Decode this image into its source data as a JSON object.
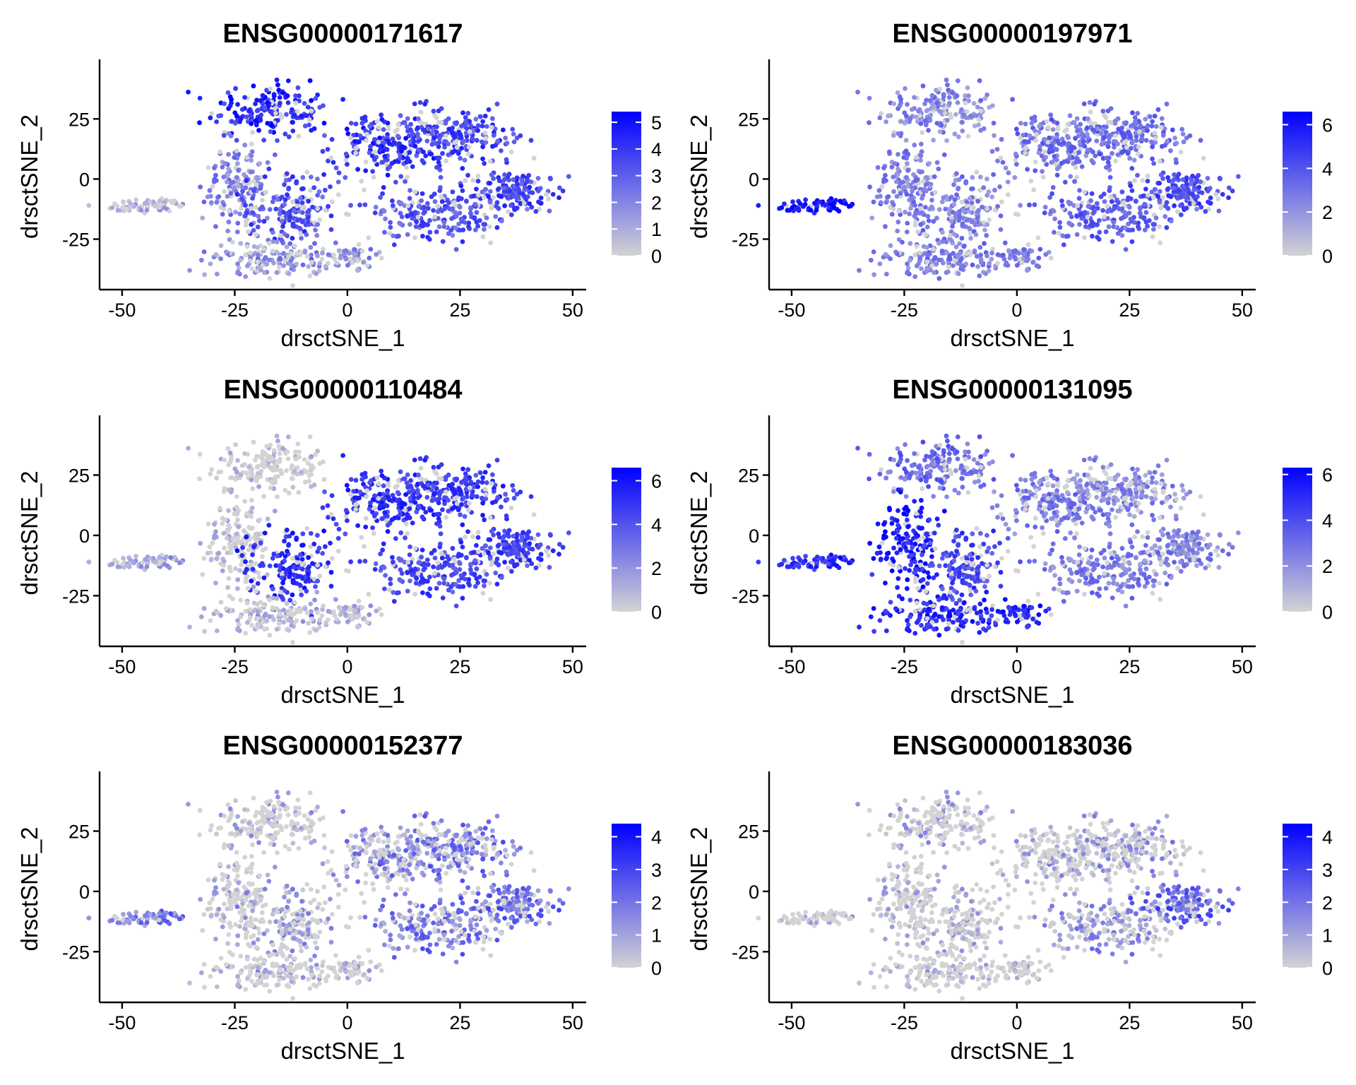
{
  "figure": {
    "low_color": "#D3D3D3",
    "high_color": "#0000FF"
  },
  "chart_data": [
    {
      "type": "scatter",
      "title": "ENSG00000171617",
      "xlabel": "drsctSNE_1",
      "ylabel": "drsctSNE_2",
      "xlim": [
        -55,
        53
      ],
      "ylim": [
        -46,
        48
      ],
      "x_ticks": [
        -50,
        -25,
        0,
        25,
        50
      ],
      "x_tick_labels": [
        "-50",
        "-25",
        "0",
        "25",
        "50"
      ],
      "y_ticks": [
        -25,
        0,
        25
      ],
      "y_tick_labels": [
        "-25",
        "0",
        "25"
      ],
      "color_scale": {
        "min": 0,
        "max": 5.4,
        "ticks": [
          0,
          1,
          2,
          3,
          4,
          5
        ],
        "tick_labels": [
          "0",
          "1",
          "2",
          "3",
          "4",
          "5"
        ]
      },
      "cluster_levels": [
        1.0,
        4.3,
        4.0,
        3.6,
        2.0,
        3.4,
        1.8,
        3.2,
        3.6
      ]
    },
    {
      "type": "scatter",
      "title": "ENSG00000197971",
      "xlabel": "drsctSNE_1",
      "ylabel": "drsctSNE_2",
      "xlim": [
        -55,
        53
      ],
      "ylim": [
        -46,
        48
      ],
      "x_ticks": [
        -50,
        -25,
        0,
        25,
        50
      ],
      "x_tick_labels": [
        "-50",
        "-25",
        "0",
        "25",
        "50"
      ],
      "y_ticks": [
        -25,
        0,
        25
      ],
      "y_tick_labels": [
        "-25",
        "0",
        "25"
      ],
      "color_scale": {
        "min": 0,
        "max": 6.6,
        "ticks": [
          0,
          2,
          4,
          6
        ],
        "tick_labels": [
          "0",
          "2",
          "4",
          "6"
        ]
      },
      "cluster_levels": [
        6.2,
        2.4,
        3.0,
        3.2,
        2.6,
        2.6,
        2.8,
        3.6,
        4.2
      ]
    },
    {
      "type": "scatter",
      "title": "ENSG00000110484",
      "xlabel": "drsctSNE_1",
      "ylabel": "drsctSNE_2",
      "xlim": [
        -55,
        53
      ],
      "ylim": [
        -46,
        48
      ],
      "x_ticks": [
        -50,
        -25,
        0,
        25,
        50
      ],
      "x_tick_labels": [
        "-50",
        "-25",
        "0",
        "25",
        "50"
      ],
      "y_ticks": [
        -25,
        0,
        25
      ],
      "y_tick_labels": [
        "-25",
        "0",
        "25"
      ],
      "color_scale": {
        "min": 0,
        "max": 6.6,
        "ticks": [
          0,
          2,
          4,
          6
        ],
        "tick_labels": [
          "0",
          "2",
          "4",
          "6"
        ]
      },
      "cluster_levels": [
        1.6,
        0.6,
        5.0,
        4.8,
        0.8,
        5.2,
        1.2,
        4.4,
        4.6
      ]
    },
    {
      "type": "scatter",
      "title": "ENSG00000131095",
      "xlabel": "drsctSNE_1",
      "ylabel": "drsctSNE_2",
      "xlim": [
        -55,
        53
      ],
      "ylim": [
        -46,
        48
      ],
      "x_ticks": [
        -50,
        -25,
        0,
        25,
        50
      ],
      "x_tick_labels": [
        "-50",
        "-25",
        "0",
        "25",
        "50"
      ],
      "y_ticks": [
        -25,
        0,
        25
      ],
      "y_tick_labels": [
        "-25",
        "0",
        "25"
      ],
      "color_scale": {
        "min": 0,
        "max": 6.3,
        "ticks": [
          0,
          2,
          4,
          6
        ],
        "tick_labels": [
          "0",
          "2",
          "4",
          "6"
        ]
      },
      "cluster_levels": [
        5.0,
        3.0,
        2.6,
        2.2,
        5.4,
        4.2,
        5.2,
        2.6,
        2.4
      ]
    },
    {
      "type": "scatter",
      "title": "ENSG00000152377",
      "xlabel": "drsctSNE_1",
      "ylabel": "drsctSNE_2",
      "xlim": [
        -55,
        53
      ],
      "ylim": [
        -46,
        48
      ],
      "x_ticks": [
        -50,
        -25,
        0,
        25,
        50
      ],
      "x_tick_labels": [
        "-50",
        "-25",
        "0",
        "25",
        "50"
      ],
      "y_ticks": [
        -25,
        0,
        25
      ],
      "y_tick_labels": [
        "-25",
        "0",
        "25"
      ],
      "color_scale": {
        "min": 0,
        "max": 4.4,
        "ticks": [
          0,
          1,
          2,
          3,
          4
        ],
        "tick_labels": [
          "0",
          "1",
          "2",
          "3",
          "4"
        ]
      },
      "cluster_levels": [
        1.8,
        0.6,
        1.4,
        1.8,
        0.5,
        1.0,
        0.6,
        1.8,
        2.0
      ]
    },
    {
      "type": "scatter",
      "title": "ENSG00000183036",
      "xlabel": "drsctSNE_1",
      "ylabel": "drsctSNE_2",
      "xlim": [
        -55,
        53
      ],
      "ylim": [
        -46,
        48
      ],
      "x_ticks": [
        -50,
        -25,
        0,
        25,
        50
      ],
      "x_tick_labels": [
        "-50",
        "-25",
        "0",
        "25",
        "50"
      ],
      "y_ticks": [
        -25,
        0,
        25
      ],
      "y_tick_labels": [
        "-25",
        "0",
        "25"
      ],
      "color_scale": {
        "min": 0,
        "max": 4.4,
        "ticks": [
          0,
          1,
          2,
          3,
          4
        ],
        "tick_labels": [
          "0",
          "1",
          "2",
          "3",
          "4"
        ]
      },
      "cluster_levels": [
        0.4,
        0.7,
        0.6,
        1.0,
        0.5,
        0.5,
        0.4,
        1.2,
        2.2
      ]
    }
  ]
}
